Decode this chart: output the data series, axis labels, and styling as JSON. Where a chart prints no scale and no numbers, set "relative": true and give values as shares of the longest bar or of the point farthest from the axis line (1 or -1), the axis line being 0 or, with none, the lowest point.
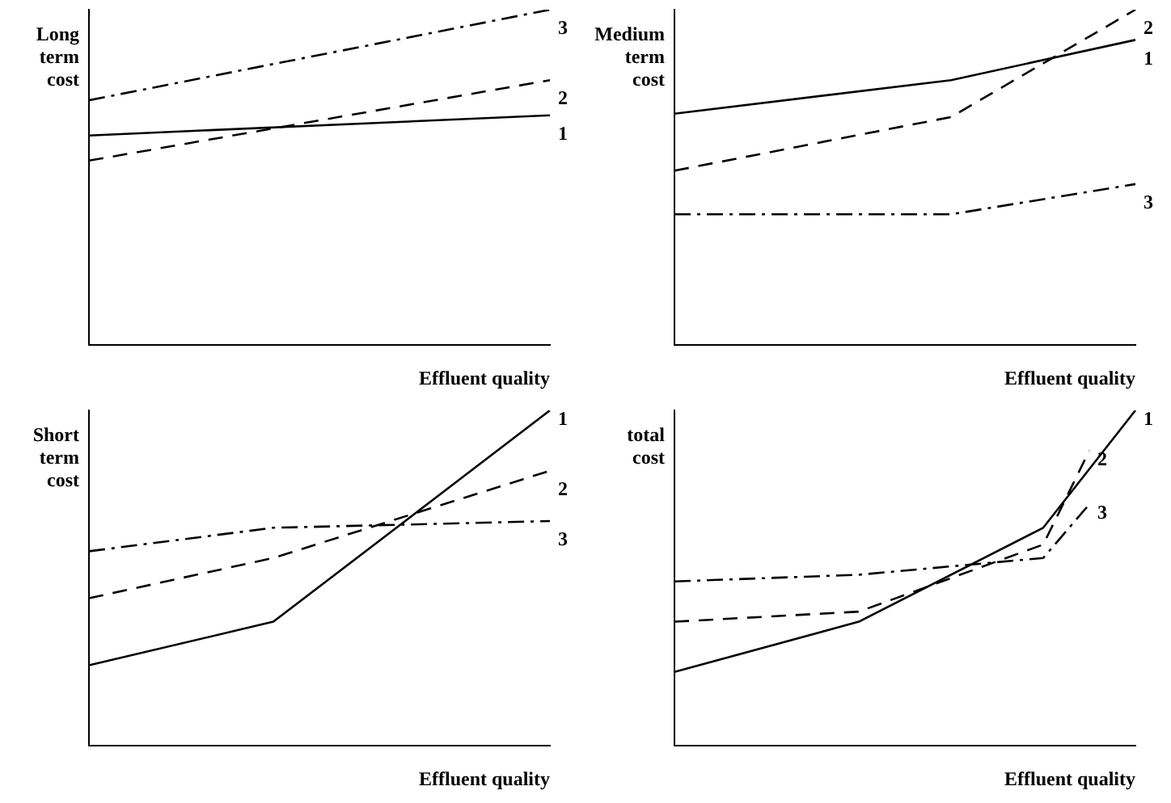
{
  "chart_data": [
    {
      "type": "line",
      "relative": true,
      "ylabel": "Long term cost",
      "xlabel": "Effluent quality",
      "categories": [
        null,
        null,
        null,
        null,
        null,
        null,
        null,
        null,
        null,
        null,
        null
      ],
      "legend": false,
      "marker": "none",
      "series": [
        {
          "name": "1",
          "color": "#000000",
          "line_style": "solid",
          "values": [
            0.625,
            null,
            null,
            null,
            null,
            null,
            null,
            null,
            null,
            null,
            0.685
          ]
        },
        {
          "name": "2",
          "color": "#000000",
          "line_style": "dashed",
          "values": [
            0.55,
            null,
            null,
            null,
            null,
            null,
            null,
            null,
            null,
            null,
            0.79
          ]
        },
        {
          "name": "3",
          "color": "#000000",
          "line_style": "dashdot",
          "values": [
            0.73,
            null,
            null,
            null,
            null,
            null,
            null,
            null,
            null,
            null,
            1
          ]
        }
      ]
    },
    {
      "type": "line",
      "relative": true,
      "ylabel": "Medium term cost",
      "xlabel": "Effluent quality",
      "categories": [
        null,
        null,
        null,
        null,
        null,
        null,
        null,
        null,
        null,
        null,
        null
      ],
      "legend": false,
      "marker": "none",
      "series": [
        {
          "name": "1",
          "color": "#000000",
          "line_style": "solid",
          "values": [
            0.69,
            null,
            null,
            null,
            null,
            null,
            0.79,
            null,
            null,
            null,
            0.91
          ]
        },
        {
          "name": "2",
          "color": "#000000",
          "line_style": "dashed",
          "values": [
            0.52,
            null,
            null,
            null,
            null,
            null,
            0.68,
            null,
            null,
            null,
            1
          ]
        },
        {
          "name": "3",
          "color": "#000000",
          "line_style": "dashdot",
          "values": [
            0.39,
            null,
            null,
            null,
            null,
            null,
            0.39,
            null,
            null,
            null,
            0.48
          ]
        }
      ]
    },
    {
      "type": "line",
      "relative": true,
      "ylabel": "Short term cost",
      "xlabel": "Effluent quality",
      "categories": [
        null,
        null,
        null,
        null,
        null,
        null,
        null,
        null,
        null,
        null,
        null
      ],
      "legend": false,
      "marker": "none",
      "series": [
        {
          "name": "1",
          "color": "#000000",
          "line_style": "solid",
          "values": [
            0.24,
            null,
            null,
            null,
            0.37,
            null,
            null,
            null,
            null,
            null,
            1
          ]
        },
        {
          "name": "2",
          "color": "#000000",
          "line_style": "dashed",
          "values": [
            0.44,
            null,
            null,
            null,
            0.56,
            null,
            null,
            null,
            null,
            null,
            0.82
          ]
        },
        {
          "name": "3",
          "color": "#000000",
          "line_style": "dashdot",
          "values": [
            0.58,
            null,
            null,
            null,
            0.65,
            null,
            null,
            null,
            null,
            null,
            0.67
          ]
        }
      ]
    },
    {
      "type": "line",
      "relative": true,
      "ylabel": "total cost",
      "xlabel": "Effluent quality",
      "categories": [
        null,
        null,
        null,
        null,
        null,
        null,
        null,
        null,
        null,
        null,
        null
      ],
      "legend": false,
      "marker": "none",
      "series": [
        {
          "name": "1",
          "color": "#000000",
          "line_style": "solid",
          "values": [
            0.22,
            null,
            null,
            null,
            0.37,
            null,
            null,
            null,
            0.65,
            null,
            1
          ]
        },
        {
          "name": "2",
          "color": "#000000",
          "line_style": "dashed",
          "values": [
            0.37,
            null,
            null,
            null,
            0.4,
            null,
            null,
            null,
            0.6,
            0.88,
            null
          ]
        },
        {
          "name": "3",
          "color": "#000000",
          "line_style": "dashdot",
          "values": [
            0.49,
            null,
            null,
            null,
            0.51,
            null,
            null,
            null,
            0.56,
            0.72,
            null
          ]
        }
      ]
    }
  ]
}
